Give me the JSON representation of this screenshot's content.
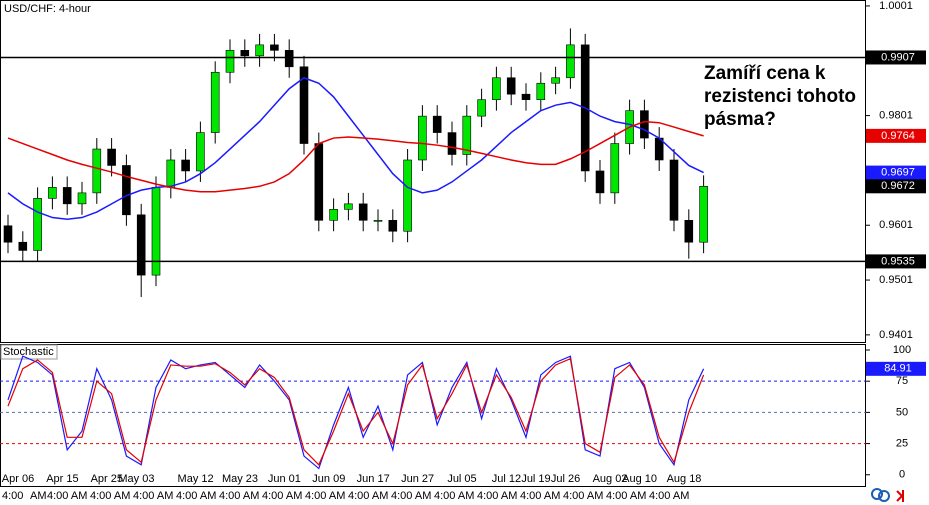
{
  "chart_data": [
    {
      "type": "candlestick",
      "title": "USD/CHF: 4-hour",
      "categories": [
        "Apr 06",
        null,
        null,
        "Apr 15",
        null,
        null,
        "Apr 25",
        null,
        "May 03",
        null,
        null,
        null,
        "May 12",
        null,
        null,
        "May 23",
        null,
        null,
        "Jun 01",
        null,
        null,
        "Jun 09",
        null,
        null,
        "Jun 17",
        null,
        null,
        "Jun 27",
        null,
        null,
        "Jul 05",
        null,
        null,
        "Jul 12",
        null,
        "Jul 19",
        null,
        "Jul 26",
        null,
        null,
        "Aug 02",
        null,
        "Aug 10",
        null,
        null,
        "Aug 18",
        null,
        null
      ],
      "open": [
        0.96,
        0.957,
        0.9555,
        0.965,
        0.967,
        0.964,
        0.966,
        0.974,
        0.971,
        0.962,
        0.951,
        0.967,
        0.972,
        0.97,
        0.977,
        0.988,
        0.992,
        0.991,
        0.993,
        0.992,
        0.989,
        0.975,
        0.961,
        0.963,
        0.964,
        0.961,
        0.961,
        0.959,
        0.972,
        0.98,
        0.977,
        0.973,
        0.98,
        0.983,
        0.987,
        0.984,
        0.983,
        0.986,
        0.987,
        0.993,
        0.97,
        0.966,
        0.975,
        0.981,
        0.976,
        0.972,
        0.961,
        0.957
      ],
      "high": [
        0.962,
        0.959,
        0.967,
        0.969,
        0.969,
        0.968,
        0.976,
        0.976,
        0.973,
        0.964,
        0.969,
        0.974,
        0.974,
        0.979,
        0.99,
        0.994,
        0.994,
        0.995,
        0.995,
        0.994,
        0.991,
        0.977,
        0.965,
        0.966,
        0.966,
        0.963,
        0.963,
        0.974,
        0.982,
        0.982,
        0.979,
        0.982,
        0.985,
        0.989,
        0.989,
        0.986,
        0.988,
        0.989,
        0.996,
        0.995,
        0.972,
        0.977,
        0.983,
        0.983,
        0.978,
        0.974,
        0.963,
        0.9692
      ],
      "low": [
        0.955,
        0.9535,
        0.9535,
        0.963,
        0.962,
        0.962,
        0.964,
        0.969,
        0.96,
        0.947,
        0.949,
        0.965,
        0.968,
        0.968,
        0.975,
        0.986,
        0.989,
        0.989,
        0.99,
        0.987,
        0.973,
        0.959,
        0.959,
        0.961,
        0.959,
        0.959,
        0.957,
        0.957,
        0.97,
        0.975,
        0.971,
        0.971,
        0.978,
        0.981,
        0.982,
        0.981,
        0.981,
        0.984,
        0.985,
        0.968,
        0.964,
        0.964,
        0.973,
        0.974,
        0.97,
        0.959,
        0.954,
        0.955
      ],
      "close": [
        0.957,
        0.9555,
        0.965,
        0.967,
        0.964,
        0.966,
        0.974,
        0.971,
        0.962,
        0.951,
        0.967,
        0.972,
        0.97,
        0.977,
        0.988,
        0.992,
        0.991,
        0.993,
        0.992,
        0.989,
        0.975,
        0.961,
        0.963,
        0.964,
        0.961,
        0.961,
        0.959,
        0.972,
        0.98,
        0.977,
        0.973,
        0.98,
        0.983,
        0.987,
        0.984,
        0.983,
        0.986,
        0.987,
        0.993,
        0.97,
        0.966,
        0.975,
        0.981,
        0.976,
        0.972,
        0.961,
        0.957,
        0.9672
      ],
      "up_color": "#00e600",
      "down_color": "#000000",
      "overlays": [
        {
          "color": "#1a1aff",
          "values": [
            0.966,
            0.964,
            0.9625,
            0.9615,
            0.9612,
            0.9615,
            0.9625,
            0.964,
            0.9655,
            0.9665,
            0.967,
            0.9672,
            0.968,
            0.9695,
            0.9715,
            0.974,
            0.9765,
            0.979,
            0.982,
            0.985,
            0.987,
            0.986,
            0.9835,
            0.98,
            0.9765,
            0.973,
            0.9695,
            0.967,
            0.966,
            0.9665,
            0.968,
            0.97,
            0.972,
            0.9745,
            0.977,
            0.979,
            0.981,
            0.982,
            0.9825,
            0.9815,
            0.98,
            0.979,
            0.9785,
            0.9775,
            0.976,
            0.9735,
            0.971,
            0.9697
          ]
        },
        {
          "color": "#e60000",
          "values": [
            0.976,
            0.975,
            0.974,
            0.973,
            0.972,
            0.9712,
            0.9705,
            0.9698,
            0.969,
            0.9683,
            0.9676,
            0.967,
            0.9665,
            0.9662,
            0.9662,
            0.9665,
            0.9668,
            0.9672,
            0.968,
            0.9695,
            0.972,
            0.975,
            0.976,
            0.9762,
            0.976,
            0.9758,
            0.9755,
            0.9752,
            0.975,
            0.9747,
            0.9743,
            0.9738,
            0.9732,
            0.9726,
            0.972,
            0.9715,
            0.9712,
            0.9712,
            0.9722,
            0.9735,
            0.975,
            0.9765,
            0.978,
            0.979,
            0.9788,
            0.978,
            0.9772,
            0.9764
          ]
        }
      ],
      "hlines": [
        0.9907,
        0.9535
      ],
      "annotation": [
        "Zamíří cena k",
        "rezistenci tohoto",
        "pásma?"
      ],
      "ylim": [
        0.9388,
        1.001
      ],
      "yticks": [
        0.9401,
        0.9501,
        0.9601,
        0.9801,
        1.0001
      ]
    },
    {
      "type": "line",
      "title": "Stochastic",
      "series": [
        {
          "color": "#1a1aff",
          "values": [
            60,
            95,
            90,
            80,
            20,
            35,
            85,
            60,
            15,
            8,
            70,
            92,
            85,
            88,
            90,
            80,
            70,
            88,
            75,
            60,
            15,
            5,
            40,
            70,
            30,
            55,
            20,
            80,
            90,
            40,
            70,
            90,
            45,
            85,
            60,
            30,
            80,
            90,
            95,
            20,
            15,
            85,
            90,
            70,
            25,
            8,
            60,
            84.91
          ]
        },
        {
          "color": "#e60000",
          "values": [
            55,
            85,
            92,
            82,
            30,
            30,
            75,
            65,
            20,
            10,
            60,
            88,
            87,
            87,
            89,
            82,
            72,
            85,
            78,
            62,
            20,
            8,
            35,
            65,
            35,
            50,
            25,
            72,
            88,
            45,
            65,
            88,
            50,
            80,
            62,
            35,
            75,
            88,
            93,
            25,
            18,
            78,
            88,
            72,
            30,
            10,
            50,
            80
          ]
        }
      ],
      "levels": [
        {
          "value": 75,
          "color": "#1a1aff"
        },
        {
          "value": 50,
          "color": "#5a6ab0"
        },
        {
          "value": 25,
          "color": "#e60000"
        }
      ],
      "x_time_labels": [
        "4:00",
        "AM",
        "4:00 AM",
        "4:00 AM",
        "4:00 AM",
        "4:00 AM",
        "4:00 AM",
        "4:00 AM",
        "4:00 AM",
        "4:00 AM",
        "4:00 AM",
        "4:00 AM",
        "4:00 AM",
        "4:00 AM",
        "4:00 AM",
        "4:00 AM",
        "4:00 AM"
      ],
      "ylim": [
        -9,
        104
      ],
      "yticks": [
        0,
        25,
        50,
        75,
        100
      ]
    }
  ]
}
